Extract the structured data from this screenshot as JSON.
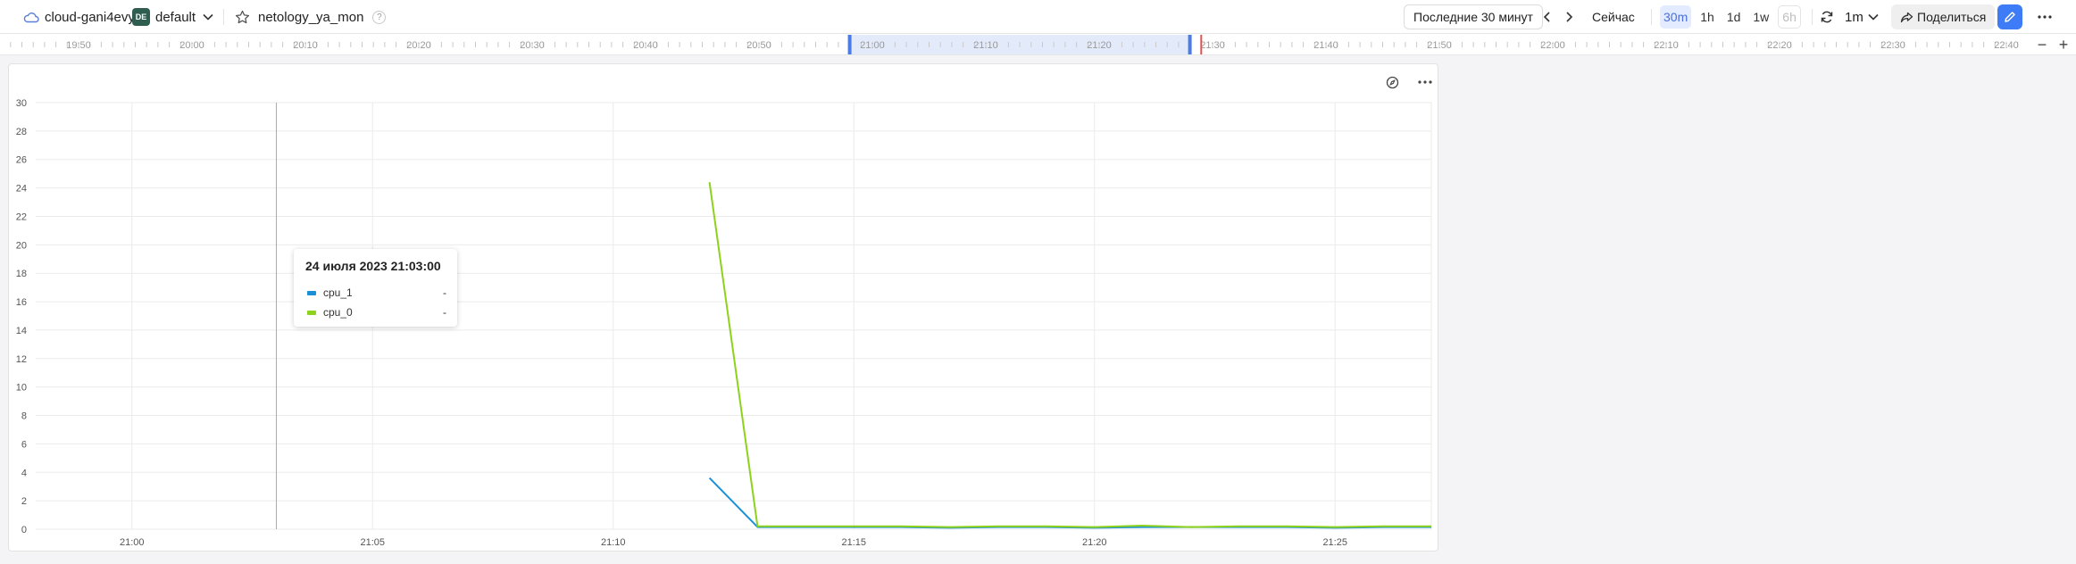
{
  "header": {
    "cloud_name": "cloud-gani4evy",
    "folder_badge": "DE",
    "folder_name": "default",
    "dashboard_name": "netology_ya_mon",
    "help": "?",
    "time_range_label": "Последние 30 минут",
    "now_label": "Сейчас",
    "ranges": [
      "30m",
      "1h",
      "1d",
      "1w",
      "6h"
    ],
    "active_range": "30m",
    "refresh_interval": "1m",
    "share_label": "Поделиться",
    "icons": {
      "cloud": "cloud-icon",
      "chevron": "chevron-down-icon",
      "favorite": "star-icon",
      "prev": "chevron-left-icon",
      "next": "chevron-right-icon",
      "refresh": "refresh-icon",
      "share": "share-icon",
      "edit": "pencil-icon",
      "more": "more-vertical-icon"
    }
  },
  "timeline": {
    "labels": [
      "19:50",
      "20:00",
      "20:10",
      "20:20",
      "20:30",
      "20:40",
      "20:50",
      "21:00",
      "21:10",
      "21:20",
      "21:30",
      "21:40",
      "21:50",
      "22:00",
      "22:10",
      "22:20",
      "22:30",
      "22:40"
    ],
    "selection_start": "20:58",
    "selection_end": "21:28",
    "now": "21:29",
    "zoom_out": "−",
    "zoom_in": "+"
  },
  "panel": {
    "icons": {
      "explore": "compass-icon",
      "menu": "more-horizontal-icon"
    }
  },
  "chart_data": {
    "type": "line",
    "title": "",
    "xlabel": "",
    "ylabel": "",
    "x_ticks": [
      "21:00",
      "21:05",
      "21:10",
      "21:15",
      "21:20",
      "21:25"
    ],
    "x_range": [
      "20:58:00",
      "21:27:00"
    ],
    "y_ticks": [
      0,
      2,
      4,
      6,
      8,
      10,
      12,
      14,
      16,
      18,
      20,
      22,
      24,
      26,
      28,
      30
    ],
    "ylim": [
      0,
      30
    ],
    "grid": true,
    "cursor_time": "21:03:00",
    "series": [
      {
        "name": "cpu_1",
        "color": "#1a91d6",
        "x": [
          "21:12",
          "21:13",
          "21:14",
          "21:15",
          "21:16",
          "21:17",
          "21:18",
          "21:19",
          "21:20",
          "21:21",
          "21:22",
          "21:23",
          "21:24",
          "21:25",
          "21:26",
          "21:27"
        ],
        "values": [
          3.6,
          0.15,
          0.15,
          0.15,
          0.15,
          0.1,
          0.15,
          0.15,
          0.1,
          0.15,
          0.15,
          0.15,
          0.15,
          0.1,
          0.15,
          0.15
        ]
      },
      {
        "name": "cpu_0",
        "color": "#8ed21b",
        "x": [
          "21:12",
          "21:13",
          "21:14",
          "21:15",
          "21:16",
          "21:17",
          "21:18",
          "21:19",
          "21:20",
          "21:21",
          "21:22",
          "21:23",
          "21:24",
          "21:25",
          "21:26",
          "21:27"
        ],
        "values": [
          24.4,
          0.2,
          0.2,
          0.2,
          0.2,
          0.15,
          0.2,
          0.2,
          0.15,
          0.25,
          0.15,
          0.2,
          0.2,
          0.15,
          0.2,
          0.2
        ]
      }
    ]
  },
  "tooltip": {
    "title": "24 июля 2023 21:03:00",
    "rows": [
      {
        "name": "cpu_1",
        "value": "-",
        "color": "#1a91d6"
      },
      {
        "name": "cpu_0",
        "value": "-",
        "color": "#8ed21b"
      }
    ]
  }
}
